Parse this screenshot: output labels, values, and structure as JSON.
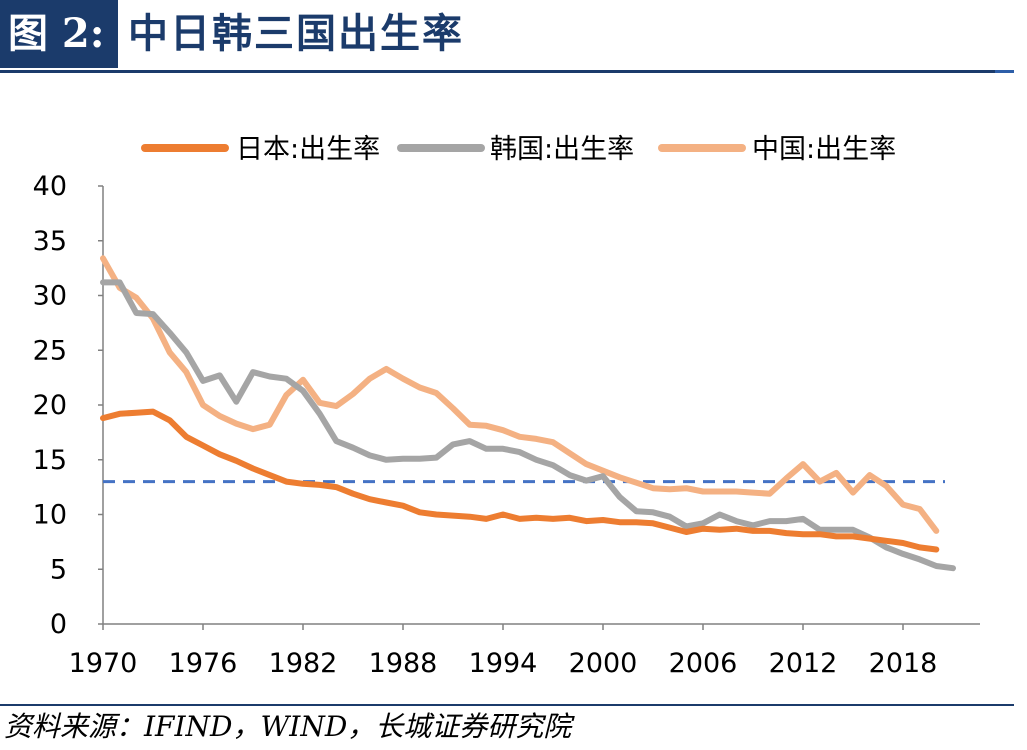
{
  "header": {
    "figure_tag": "图 2:",
    "title": "中日韩三国出生率"
  },
  "footer": {
    "source": "资料来源：IFIND，WIND，长城证券研究院"
  },
  "colors": {
    "header_bg": "#1b3b6b",
    "japan": "#ed7d31",
    "korea": "#a5a5a5",
    "china": "#f4b183",
    "reference_line": "#4472c4"
  },
  "chart_data": {
    "type": "line",
    "xlim": [
      1970,
      2022
    ],
    "ylim": [
      0,
      40
    ],
    "x_ticks": [
      1970,
      1976,
      1982,
      1988,
      1994,
      2000,
      2006,
      2012,
      2018
    ],
    "y_ticks": [
      0,
      5,
      10,
      15,
      20,
      25,
      30,
      35,
      40
    ],
    "legend_position": "top",
    "reference_line": {
      "y": 13,
      "style": "dashed"
    },
    "series": [
      {
        "name": "日本:出生率",
        "color": "#ed7d31",
        "x": [
          1970,
          1971,
          1972,
          1973,
          1974,
          1975,
          1976,
          1977,
          1978,
          1979,
          1980,
          1981,
          1982,
          1983,
          1984,
          1985,
          1986,
          1987,
          1988,
          1989,
          1990,
          1991,
          1992,
          1993,
          1994,
          1995,
          1996,
          1997,
          1998,
          1999,
          2000,
          2001,
          2002,
          2003,
          2004,
          2005,
          2006,
          2007,
          2008,
          2009,
          2010,
          2011,
          2012,
          2013,
          2014,
          2015,
          2016,
          2017,
          2018,
          2019,
          2020
        ],
        "values": [
          18.8,
          19.2,
          19.3,
          19.4,
          18.6,
          17.1,
          16.3,
          15.5,
          14.9,
          14.2,
          13.6,
          13.0,
          12.8,
          12.7,
          12.5,
          11.9,
          11.4,
          11.1,
          10.8,
          10.2,
          10.0,
          9.9,
          9.8,
          9.6,
          10.0,
          9.6,
          9.7,
          9.6,
          9.7,
          9.4,
          9.5,
          9.3,
          9.3,
          9.2,
          8.8,
          8.4,
          8.7,
          8.6,
          8.7,
          8.5,
          8.5,
          8.3,
          8.2,
          8.2,
          8.0,
          8.0,
          7.8,
          7.6,
          7.4,
          7.0,
          6.8
        ]
      },
      {
        "name": "韩国:出生率",
        "color": "#a5a5a5",
        "x": [
          1970,
          1971,
          1972,
          1973,
          1974,
          1975,
          1976,
          1977,
          1978,
          1979,
          1980,
          1981,
          1982,
          1983,
          1984,
          1985,
          1986,
          1987,
          1988,
          1989,
          1990,
          1991,
          1992,
          1993,
          1994,
          1995,
          1996,
          1997,
          1998,
          1999,
          2000,
          2001,
          2002,
          2003,
          2004,
          2005,
          2006,
          2007,
          2008,
          2009,
          2010,
          2011,
          2012,
          2013,
          2014,
          2015,
          2016,
          2017,
          2018,
          2019,
          2020,
          2021
        ],
        "values": [
          31.2,
          31.2,
          28.4,
          28.3,
          26.6,
          24.8,
          22.2,
          22.7,
          20.3,
          23.0,
          22.6,
          22.4,
          21.3,
          19.2,
          16.7,
          16.1,
          15.4,
          15.0,
          15.1,
          15.1,
          15.2,
          16.4,
          16.7,
          16.0,
          16.0,
          15.7,
          15.0,
          14.5,
          13.6,
          13.1,
          13.5,
          11.6,
          10.3,
          10.2,
          9.8,
          8.9,
          9.2,
          10.0,
          9.4,
          9.0,
          9.4,
          9.4,
          9.6,
          8.6,
          8.6,
          8.6,
          7.9,
          7.0,
          6.4,
          5.9,
          5.3,
          5.1
        ]
      },
      {
        "name": "中国:出生率",
        "color": "#f4b183",
        "x": [
          1970,
          1971,
          1972,
          1973,
          1974,
          1975,
          1976,
          1977,
          1978,
          1979,
          1980,
          1981,
          1982,
          1983,
          1984,
          1985,
          1986,
          1987,
          1988,
          1989,
          1990,
          1991,
          1992,
          1993,
          1994,
          1995,
          1996,
          1997,
          1998,
          1999,
          2000,
          2001,
          2002,
          2003,
          2004,
          2005,
          2006,
          2007,
          2008,
          2009,
          2010,
          2011,
          2012,
          2013,
          2014,
          2015,
          2016,
          2017,
          2018,
          2019,
          2020
        ],
        "values": [
          33.4,
          30.7,
          29.8,
          27.9,
          24.8,
          23.0,
          20.0,
          19.0,
          18.3,
          17.8,
          18.2,
          20.9,
          22.3,
          20.2,
          19.9,
          21.0,
          22.4,
          23.3,
          22.4,
          21.6,
          21.1,
          19.7,
          18.2,
          18.1,
          17.7,
          17.1,
          16.9,
          16.6,
          15.6,
          14.6,
          14.0,
          13.4,
          12.9,
          12.4,
          12.3,
          12.4,
          12.1,
          12.1,
          12.1,
          12.0,
          11.9,
          13.3,
          14.6,
          13.0,
          13.8,
          12.0,
          13.6,
          12.6,
          10.9,
          10.5,
          8.5
        ]
      }
    ]
  }
}
